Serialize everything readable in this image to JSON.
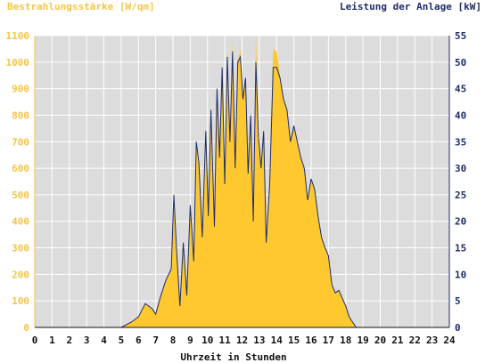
{
  "chart_data": {
    "type": "area",
    "left_axis_label": "Bestrahlungsstärke [W/qm]",
    "right_axis_label": "Leistung der Anlage [kW]",
    "xlabel": "Uhrzeit in Stunden",
    "xlim": [
      0,
      24
    ],
    "ylim_left": [
      0,
      1100
    ],
    "ylim_right": [
      0,
      55
    ],
    "x_ticks": [
      "0",
      "1",
      "2",
      "3",
      "4",
      "5",
      "6",
      "7",
      "8",
      "9",
      "10",
      "11",
      "12",
      "13",
      "14",
      "15",
      "16",
      "17",
      "18",
      "19",
      "20",
      "21",
      "22",
      "23",
      "24"
    ],
    "left_ticks": [
      "0",
      "100",
      "200",
      "300",
      "400",
      "500",
      "600",
      "700",
      "800",
      "900",
      "1000",
      "1100"
    ],
    "right_ticks": [
      "0",
      "5",
      "10",
      "15",
      "20",
      "25",
      "30",
      "35",
      "40",
      "45",
      "50",
      "55"
    ],
    "grid": true,
    "colors": {
      "plot_bg": "#dcdcdc",
      "grid": "#ffffff",
      "irradiance": "#ffc82e",
      "power": "#1e2d6b",
      "left_axis": "#f5c542",
      "right_axis": "#1e2d6b"
    },
    "series": [
      {
        "name": "Bestrahlungsstärke [W/qm]",
        "axis": "left",
        "style": "filled-area",
        "x": [
          0,
          5,
          5.3,
          5.6,
          6.0,
          6.4,
          6.8,
          7.0,
          7.3,
          7.6,
          7.9,
          8.05,
          8.2,
          8.4,
          8.6,
          8.8,
          9.0,
          9.2,
          9.35,
          9.5,
          9.7,
          9.9,
          10.05,
          10.2,
          10.4,
          10.55,
          10.7,
          10.85,
          11.0,
          11.15,
          11.3,
          11.45,
          11.6,
          11.75,
          11.9,
          12.05,
          12.2,
          12.35,
          12.5,
          12.65,
          12.8,
          12.95,
          13.1,
          13.25,
          13.4,
          13.6,
          13.8,
          14.0,
          14.2,
          14.4,
          14.6,
          14.8,
          15.0,
          15.2,
          15.4,
          15.6,
          15.8,
          16.0,
          16.2,
          16.4,
          16.6,
          16.8,
          17.0,
          17.2,
          17.4,
          17.6,
          17.8,
          18.0,
          18.2,
          18.4,
          18.6,
          18.8,
          19.0,
          19.2,
          19.4,
          19.6,
          19.8,
          20.0,
          20.2,
          20.5,
          24
        ],
        "y": [
          0,
          0,
          10,
          20,
          40,
          90,
          70,
          50,
          120,
          180,
          220,
          450,
          300,
          80,
          320,
          120,
          450,
          250,
          700,
          620,
          340,
          750,
          420,
          820,
          380,
          900,
          650,
          980,
          550,
          1050,
          700,
          1080,
          600,
          1000,
          1050,
          860,
          950,
          580,
          800,
          400,
          1100,
          720,
          600,
          750,
          320,
          540,
          1050,
          1040,
          950,
          860,
          820,
          700,
          760,
          700,
          640,
          600,
          480,
          560,
          520,
          420,
          340,
          300,
          270,
          160,
          130,
          140,
          110,
          80,
          40,
          20,
          0,
          0,
          0,
          0,
          0,
          0,
          0,
          0,
          0,
          0,
          0
        ]
      },
      {
        "name": "Leistung der Anlage [kW]",
        "axis": "right",
        "style": "line",
        "x": [
          0,
          5,
          5.3,
          5.6,
          6.0,
          6.4,
          6.8,
          7.0,
          7.3,
          7.6,
          7.9,
          8.05,
          8.2,
          8.4,
          8.6,
          8.8,
          9.0,
          9.2,
          9.35,
          9.5,
          9.7,
          9.9,
          10.05,
          10.2,
          10.4,
          10.55,
          10.7,
          10.85,
          11.0,
          11.15,
          11.3,
          11.45,
          11.6,
          11.75,
          11.9,
          12.05,
          12.2,
          12.35,
          12.5,
          12.65,
          12.8,
          12.95,
          13.1,
          13.25,
          13.4,
          13.6,
          13.8,
          14.0,
          14.2,
          14.4,
          14.6,
          14.8,
          15.0,
          15.2,
          15.4,
          15.6,
          15.8,
          16.0,
          16.2,
          16.4,
          16.6,
          16.8,
          17.0,
          17.2,
          17.4,
          17.6,
          17.8,
          18.0,
          18.2,
          18.4,
          18.6,
          18.8,
          19.0,
          19.2,
          19.4,
          19.6,
          19.8,
          20.0,
          20.2,
          20.5,
          24
        ],
        "y": [
          0,
          0,
          0.5,
          1,
          2,
          4.5,
          3.5,
          2.5,
          6,
          9,
          11,
          25,
          15,
          4,
          16,
          6,
          23,
          12.5,
          35,
          31,
          17,
          37,
          21,
          41,
          19,
          45,
          32,
          49,
          27,
          51,
          35,
          52,
          30,
          50,
          51,
          43,
          47,
          29,
          40,
          20,
          50,
          36,
          30,
          37,
          16,
          27,
          49,
          49,
          47,
          43,
          41,
          35,
          38,
          35,
          32,
          30,
          24,
          28,
          26,
          21,
          17,
          15,
          13.5,
          8,
          6.5,
          7,
          5.5,
          4,
          2,
          1,
          0,
          0,
          0,
          0,
          0,
          0,
          0,
          0,
          0,
          0,
          0
        ]
      }
    ]
  }
}
